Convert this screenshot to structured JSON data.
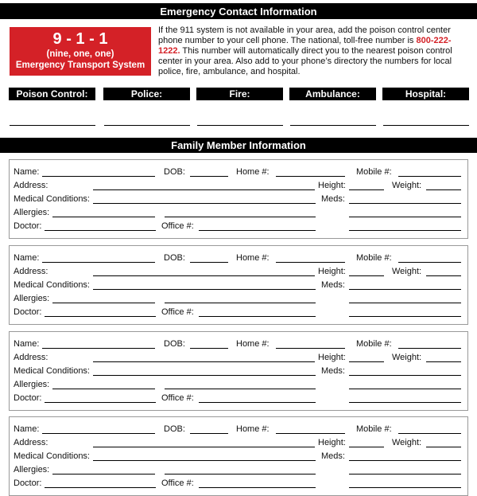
{
  "emergency": {
    "title": "Emergency Contact Information",
    "badge": {
      "number": "9 - 1 - 1",
      "spoken": "(nine, one, one)",
      "system": "Emergency Transport System"
    },
    "intro_before": "If the 911 system is not available in your area, add the poison control center phone number to your cell phone. The national, toll-free number is ",
    "poison_number": "800-222-1222.",
    "intro_after": " This number will automatically direct you to the nearest poison control center in your area. Also add to your phone’s directory the numbers for local police, fire, ambulance, and hospital.",
    "contacts": [
      "Poison Control:",
      "Police:",
      "Fire:",
      "Ambulance:",
      "Hospital:"
    ]
  },
  "family": {
    "title": "Family Member Information",
    "fields": {
      "name": "Name:",
      "dob": "DOB:",
      "home": "Home #:",
      "mobile": "Mobile #:",
      "address": "Address:",
      "height": "Height:",
      "weight": "Weight:",
      "medical": "Medical Conditions:",
      "meds": "Meds:",
      "allergies": "Allergies:",
      "doctor": "Doctor:",
      "office": "Office #:"
    },
    "member_count": 4
  },
  "colors": {
    "accent": "#d42127",
    "bar": "#000000"
  }
}
